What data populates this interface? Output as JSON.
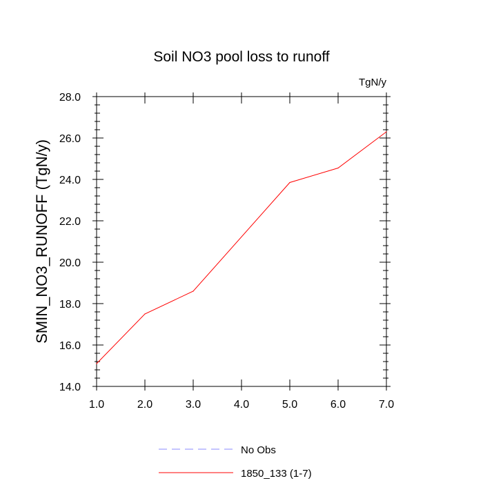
{
  "chart_data": {
    "type": "line",
    "title": "Soil NO3 pool loss to runoff",
    "units": "TgN/y",
    "ylabel": "SMIN_NO3_RUNOFF  (TgN/y)",
    "xlabel": "",
    "xlim": [
      1.0,
      7.0
    ],
    "ylim": [
      14.0,
      28.0
    ],
    "x_ticks": [
      "1.0",
      "2.0",
      "3.0",
      "4.0",
      "5.0",
      "6.0",
      "7.0"
    ],
    "y_ticks": [
      "14.0",
      "16.0",
      "18.0",
      "20.0",
      "22.0",
      "24.0",
      "26.0",
      "28.0"
    ],
    "grid": false,
    "legend_position": "bottom",
    "series": [
      {
        "name": "1850_133 (1-7)",
        "color": "#ff0000",
        "style": "solid",
        "x": [
          1,
          2,
          3,
          5,
          6,
          7
        ],
        "y": [
          15.1,
          17.5,
          18.6,
          23.85,
          24.55,
          26.3
        ]
      }
    ],
    "legend": [
      {
        "label": "No Obs",
        "color": "#8888ff",
        "style": "dashed"
      },
      {
        "label": "1850_133 (1-7)",
        "color": "#ff0000",
        "style": "solid"
      }
    ]
  }
}
